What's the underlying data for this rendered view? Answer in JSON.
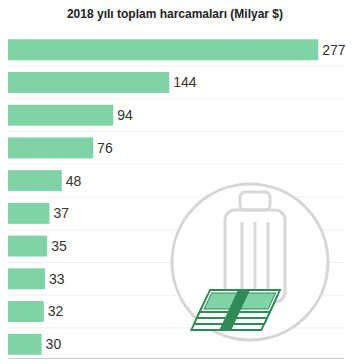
{
  "chart_data": {
    "type": "bar",
    "title": "2018 yılı toplam harcamaları (Milyar $)",
    "orientation": "horizontal",
    "categories": [
      null,
      null,
      null,
      null,
      null,
      null,
      null,
      null,
      null,
      null
    ],
    "values": [
      277,
      144,
      94,
      76,
      48,
      37,
      35,
      33,
      32,
      30
    ],
    "color": "#7fd3a6",
    "xlim": [
      0,
      300
    ],
    "xticks": [],
    "data_labels": true,
    "tick_labels": false,
    "grid": false
  }
}
